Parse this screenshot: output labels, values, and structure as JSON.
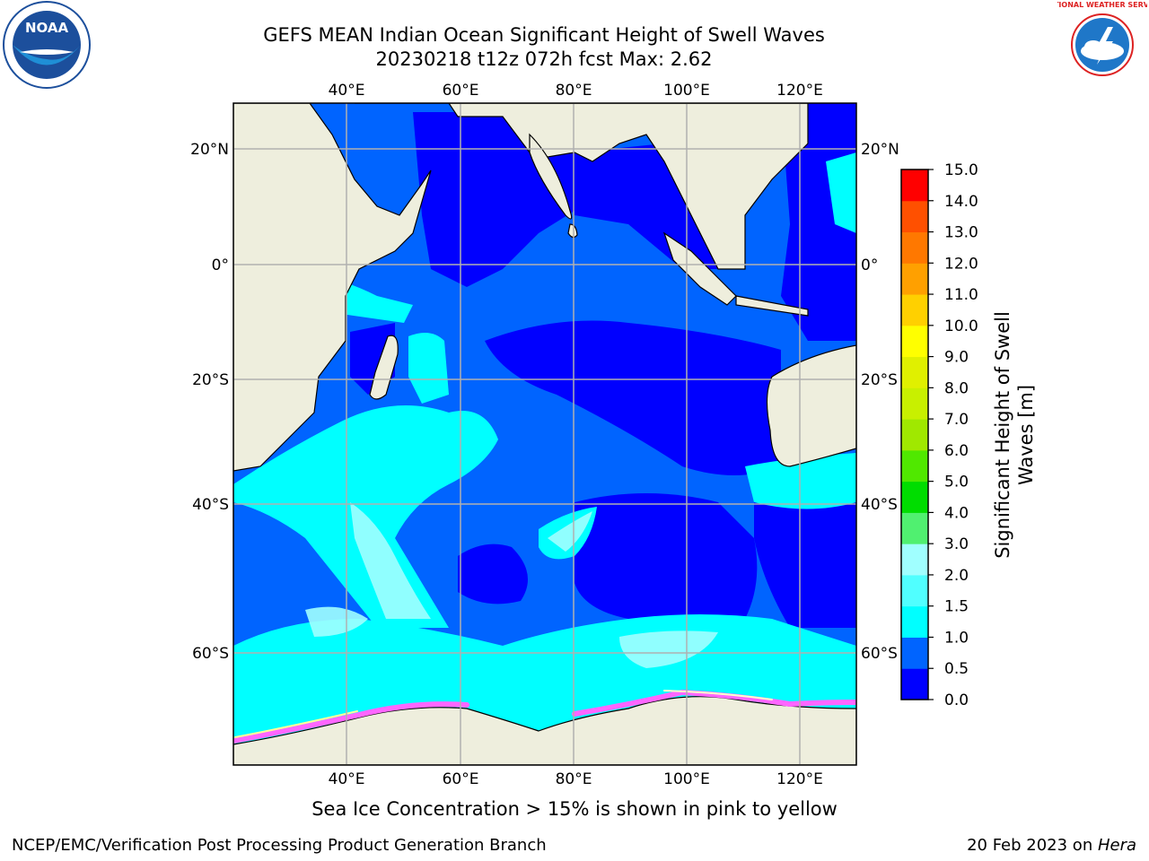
{
  "title_line1": "GEFS MEAN Indian Ocean Significant Height of Swell Waves",
  "title_line2": "20230218 t12z 072h fcst   Max: 2.62",
  "caption": "Sea Ice Concentration > 15% is shown in pink to yellow",
  "footer_left": "NCEP/EMC/Verification Post Processing Product Generation Branch",
  "footer_right_prefix": "20 Feb 2023 on ",
  "footer_right_host": "Hera",
  "noaa_logo_text": "NOAA",
  "nws_logo_text": "NATIONAL WEATHER SERVICE",
  "map": {
    "lon_ticks": [
      "40°E",
      "60°E",
      "80°E",
      "100°E",
      "120°E"
    ],
    "lat_ticks_left": [
      "20°N",
      "0°",
      "20°S",
      "40°S",
      "60°S"
    ],
    "lat_ticks_right": [
      "20°N",
      "0°",
      "20°S",
      "40°S",
      "60°S"
    ],
    "colors": {
      "land": "#eeeedd",
      "gridline": "#b0b0b0"
    }
  },
  "colorbar": {
    "label_line1": "Significant Height of Swell",
    "label_line2": "Waves [m]",
    "ticks": [
      "0.0",
      "0.5",
      "1.0",
      "1.5",
      "2.0",
      "3.0",
      "4.0",
      "5.0",
      "6.0",
      "7.0",
      "8.0",
      "9.0",
      "10.0",
      "11.0",
      "12.0",
      "13.0",
      "14.0",
      "15.0"
    ],
    "colors": [
      "#0000ff",
      "#0064ff",
      "#00ffff",
      "#50ffff",
      "#a0ffff",
      "#50f070",
      "#00dd00",
      "#50e800",
      "#a0e800",
      "#c8f000",
      "#e0f000",
      "#ffff00",
      "#ffd000",
      "#ffa000",
      "#ff7800",
      "#ff5000",
      "#ff0000"
    ]
  }
}
